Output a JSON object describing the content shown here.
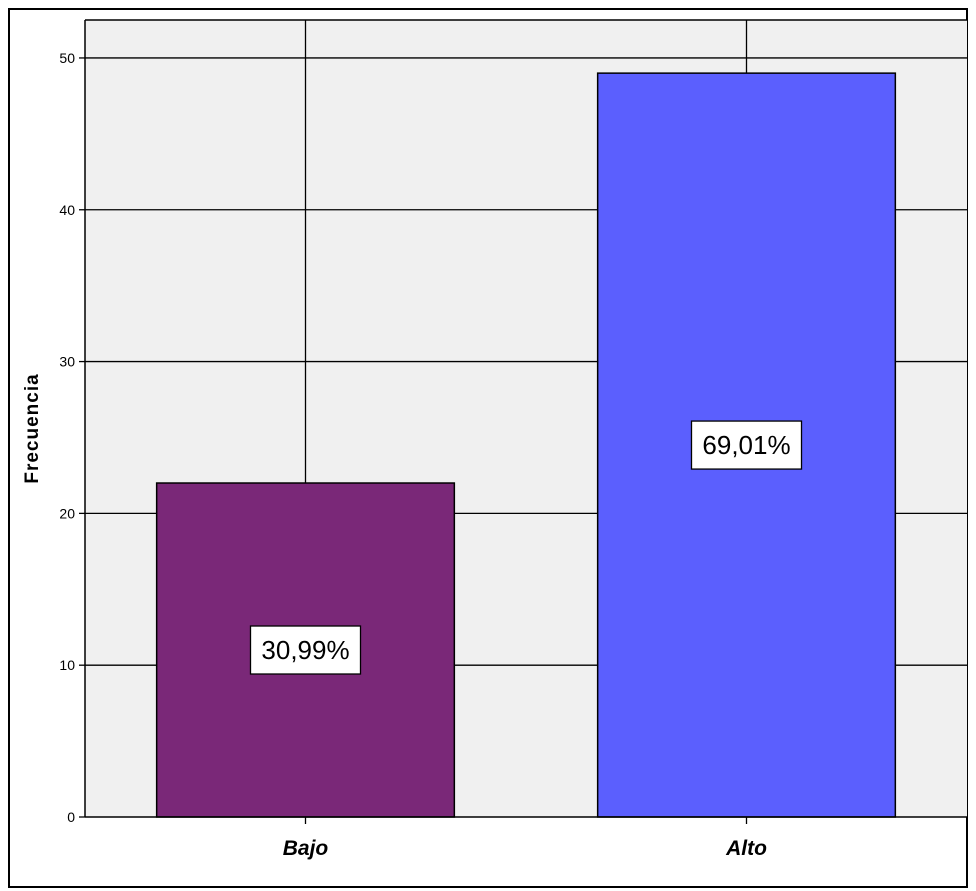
{
  "chart_data": {
    "type": "bar",
    "categories": [
      "Bajo",
      "Alto"
    ],
    "values": [
      22,
      49
    ],
    "percent_labels": [
      "30,99%",
      "69,01%"
    ],
    "colors": [
      "#7a2878",
      "#5b5ffe"
    ],
    "ylabel": "Frecuencia",
    "xlabel": "",
    "ylim": [
      0,
      52.5
    ],
    "yticks": [
      0,
      10,
      20,
      30,
      40,
      50
    ],
    "ytick_labels": [
      "0",
      "10",
      "20",
      "30",
      "40",
      "50"
    ],
    "grid": true,
    "plot_background": "#f0f0f0"
  }
}
